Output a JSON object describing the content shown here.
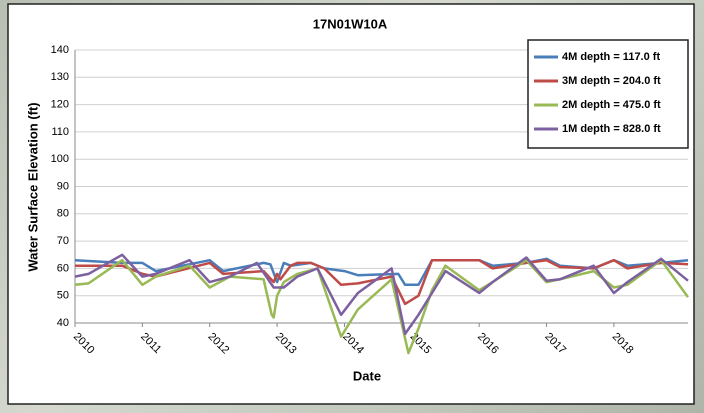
{
  "chart_data": {
    "type": "line",
    "title": "17N01W10A",
    "x_label": "Date",
    "y_label": "Water Surface Elevation (ft)",
    "xlim": [
      2010,
      2019.1
    ],
    "xticks": [
      2010,
      2011,
      2012,
      2013,
      2014,
      2015,
      2016,
      2017,
      2018
    ],
    "ylim": [
      40,
      140
    ],
    "yticks": [
      40,
      50,
      60,
      70,
      80,
      90,
      100,
      110,
      120,
      130,
      140
    ],
    "grid": true,
    "legend": "upper right",
    "series": [
      {
        "name": "4M depth = 117.0 ft",
        "color": "#4a7ebb",
        "x": [
          2010,
          2010.7,
          2011,
          2011.2,
          2012,
          2012.2,
          2012.8,
          2012.9,
          2013,
          2013.1,
          2013.2,
          2013.5,
          2013.7,
          2014,
          2014.2,
          2014.8,
          2014.9,
          2015.1,
          2015.3,
          2016,
          2016.2,
          2016.7,
          2017,
          2017.2,
          2017.7,
          2018,
          2018.2,
          2018.7,
          2019.1
        ],
        "values": [
          63,
          62,
          62,
          59,
          63,
          59,
          62,
          61.5,
          55,
          62,
          61,
          62,
          60,
          59,
          57.5,
          58,
          54,
          54,
          63,
          63,
          61,
          62,
          63.5,
          61,
          60,
          63,
          61,
          62,
          63
        ]
      },
      {
        "name": "3M depth = 204.0 ft",
        "color": "#be4b48",
        "x": [
          2010,
          2010.7,
          2011,
          2011.2,
          2012,
          2012.2,
          2012.8,
          2012.95,
          2013,
          2013.05,
          2013.2,
          2013.3,
          2013.5,
          2013.7,
          2013.95,
          2014.2,
          2014.7,
          2014.9,
          2015.1,
          2015.3,
          2016,
          2016.2,
          2016.7,
          2017,
          2017.2,
          2017.7,
          2018,
          2018.2,
          2018.7,
          2019.1
        ],
        "values": [
          61,
          61,
          58,
          57,
          62,
          58,
          59,
          55,
          58,
          56,
          61,
          62,
          62,
          60,
          54,
          54.5,
          57,
          47,
          50,
          63,
          63,
          60,
          62,
          63,
          60.5,
          60,
          63,
          60,
          62,
          61.5
        ]
      },
      {
        "name": "2M depth = 475.0 ft",
        "color": "#98b954",
        "x": [
          2010,
          2010.2,
          2010.7,
          2011,
          2011.2,
          2011.7,
          2012,
          2012.3,
          2012.8,
          2012.92,
          2012.95,
          2013,
          2013.1,
          2013.3,
          2013.6,
          2013.95,
          2014.2,
          2014.7,
          2014.95,
          2015.1,
          2015.3,
          2015.5,
          2016,
          2016.2,
          2016.7,
          2017,
          2017.2,
          2017.7,
          2018,
          2018.2,
          2018.7,
          2019.1
        ],
        "values": [
          54,
          54.5,
          63,
          54,
          57,
          61,
          53,
          57,
          56,
          43,
          42,
          50,
          55,
          58,
          60,
          35,
          45,
          56,
          29,
          38,
          52,
          61,
          52,
          55,
          63,
          55,
          56,
          59,
          53,
          54,
          63,
          49.5
        ]
      },
      {
        "name": "1M depth = 828.0 ft",
        "color": "#7d60a0",
        "x": [
          2010,
          2010.2,
          2010.7,
          2011,
          2011.2,
          2011.7,
          2012,
          2012.3,
          2012.7,
          2012.95,
          2013.1,
          2013.3,
          2013.6,
          2013.95,
          2014.2,
          2014.7,
          2014.9,
          2015.1,
          2015.5,
          2016,
          2016.2,
          2016.7,
          2017,
          2017.2,
          2017.7,
          2018,
          2018.2,
          2018.7,
          2019.1
        ],
        "values": [
          57,
          58,
          65,
          57,
          58,
          63,
          55,
          57,
          62,
          53,
          53,
          57,
          60,
          43,
          51,
          60,
          36,
          43,
          59,
          51,
          55,
          64,
          55.5,
          56,
          61,
          51,
          55,
          63.5,
          55.5
        ]
      }
    ]
  }
}
